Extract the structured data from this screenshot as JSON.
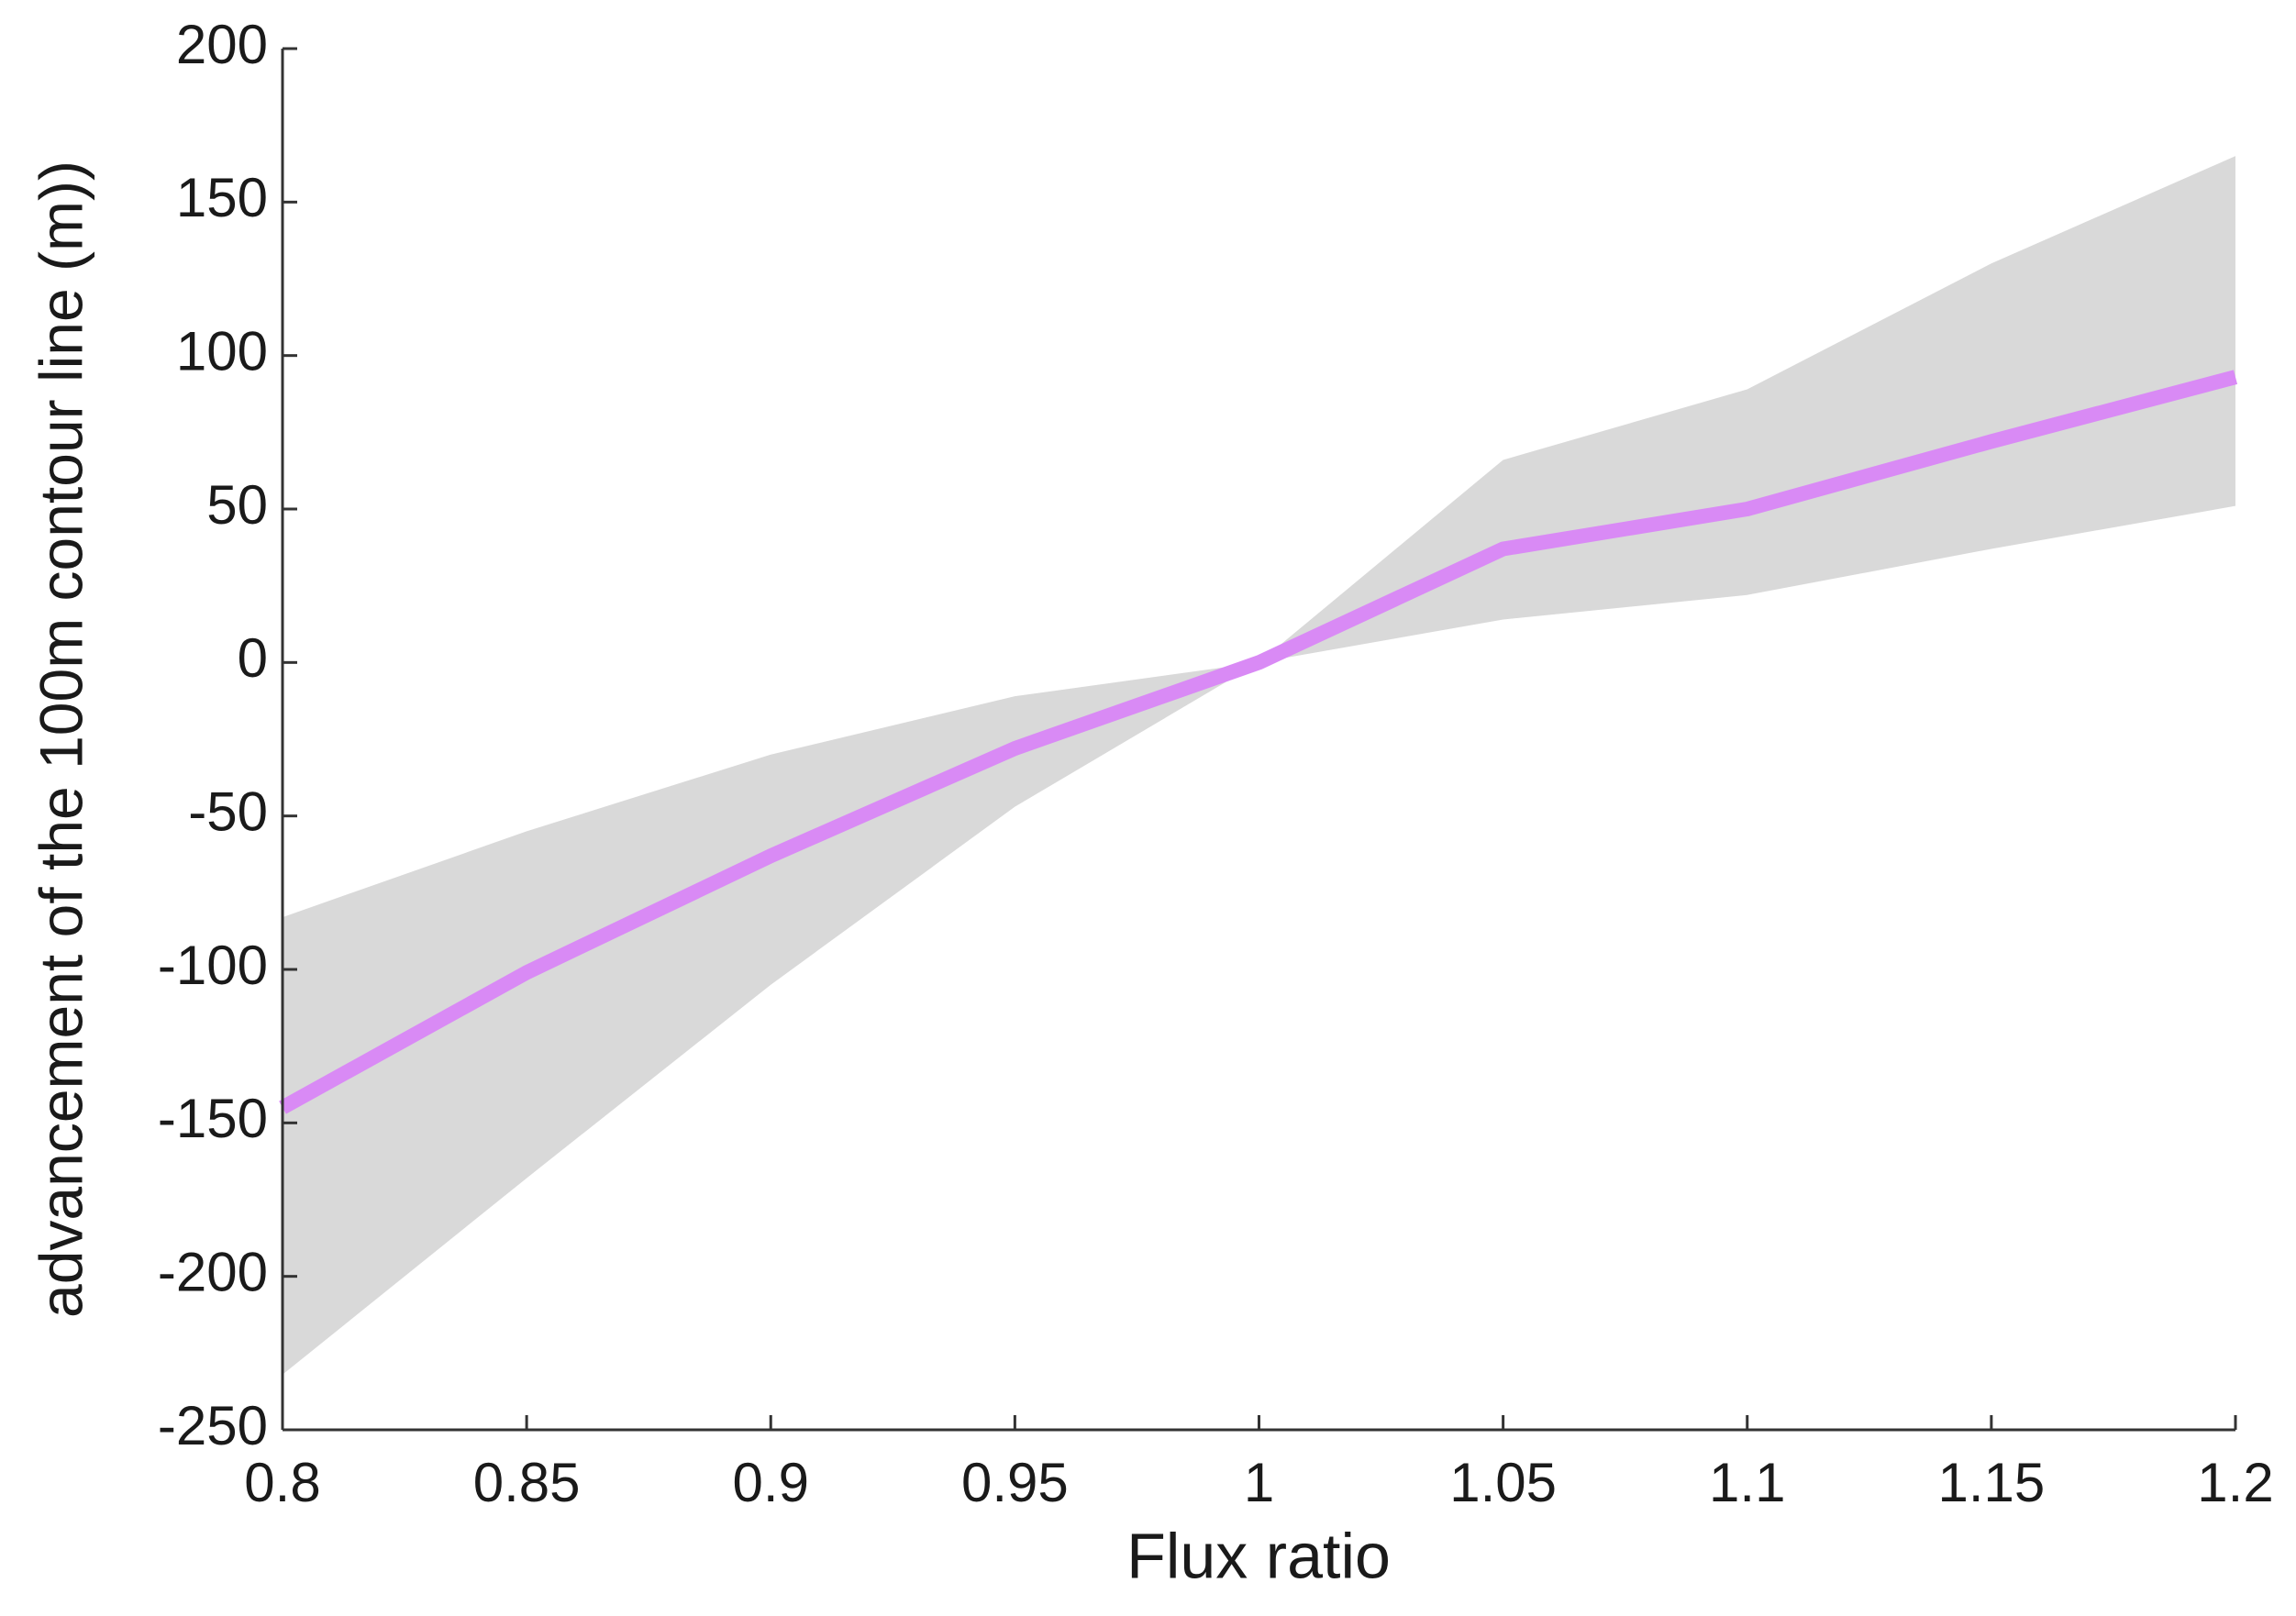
{
  "chart_data": {
    "type": "line",
    "xlabel": "Flux ratio",
    "ylabel": "advancement of the 100m contour line (m))",
    "x": [
      0.8,
      0.85,
      0.9,
      0.95,
      1,
      1.05,
      1.1,
      1.15,
      1.2
    ],
    "series": [
      {
        "color": "#d98af5",
        "values": [
          -145,
          -101,
          -63,
          -28,
          0,
          37,
          50,
          72,
          93
        ]
      }
    ],
    "band": {
      "color": "#d9d9d9",
      "upper": [
        -83,
        -55,
        -30,
        -11,
        0,
        66,
        89,
        130,
        165
      ],
      "lower": [
        -232,
        -168,
        -105,
        -47,
        0,
        14,
        22,
        37,
        51
      ]
    },
    "xlim": [
      0.8,
      1.2
    ],
    "xticks": [
      0.8,
      0.85,
      0.9,
      0.95,
      1,
      1.05,
      1.1,
      1.15,
      1.2
    ],
    "ylim": [
      -250,
      200
    ],
    "yticks": [
      -250,
      -200,
      -150,
      -100,
      -50,
      0,
      50,
      100,
      150,
      200
    ],
    "grid": false
  }
}
